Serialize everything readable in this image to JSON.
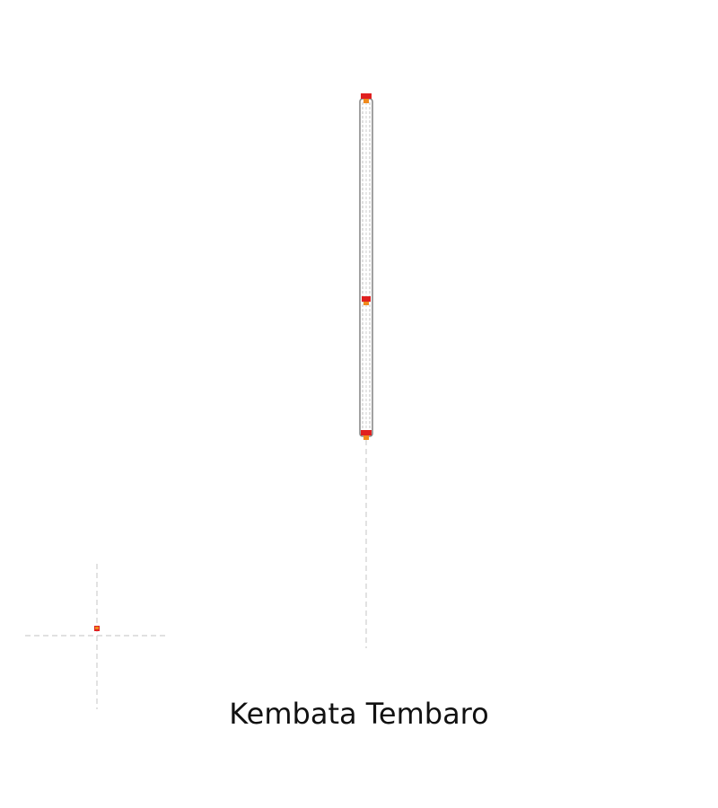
{
  "title": "Kembata Tembaro",
  "colors": {
    "background": "#ffffff",
    "outline": "#8a8a8a",
    "dashed_guide": "#cfcfcf",
    "marker_red": "#e02020",
    "marker_orange": "#f08a1c",
    "text": "#111111"
  },
  "icons": {
    "marker": "crosshair-marker-icon"
  }
}
